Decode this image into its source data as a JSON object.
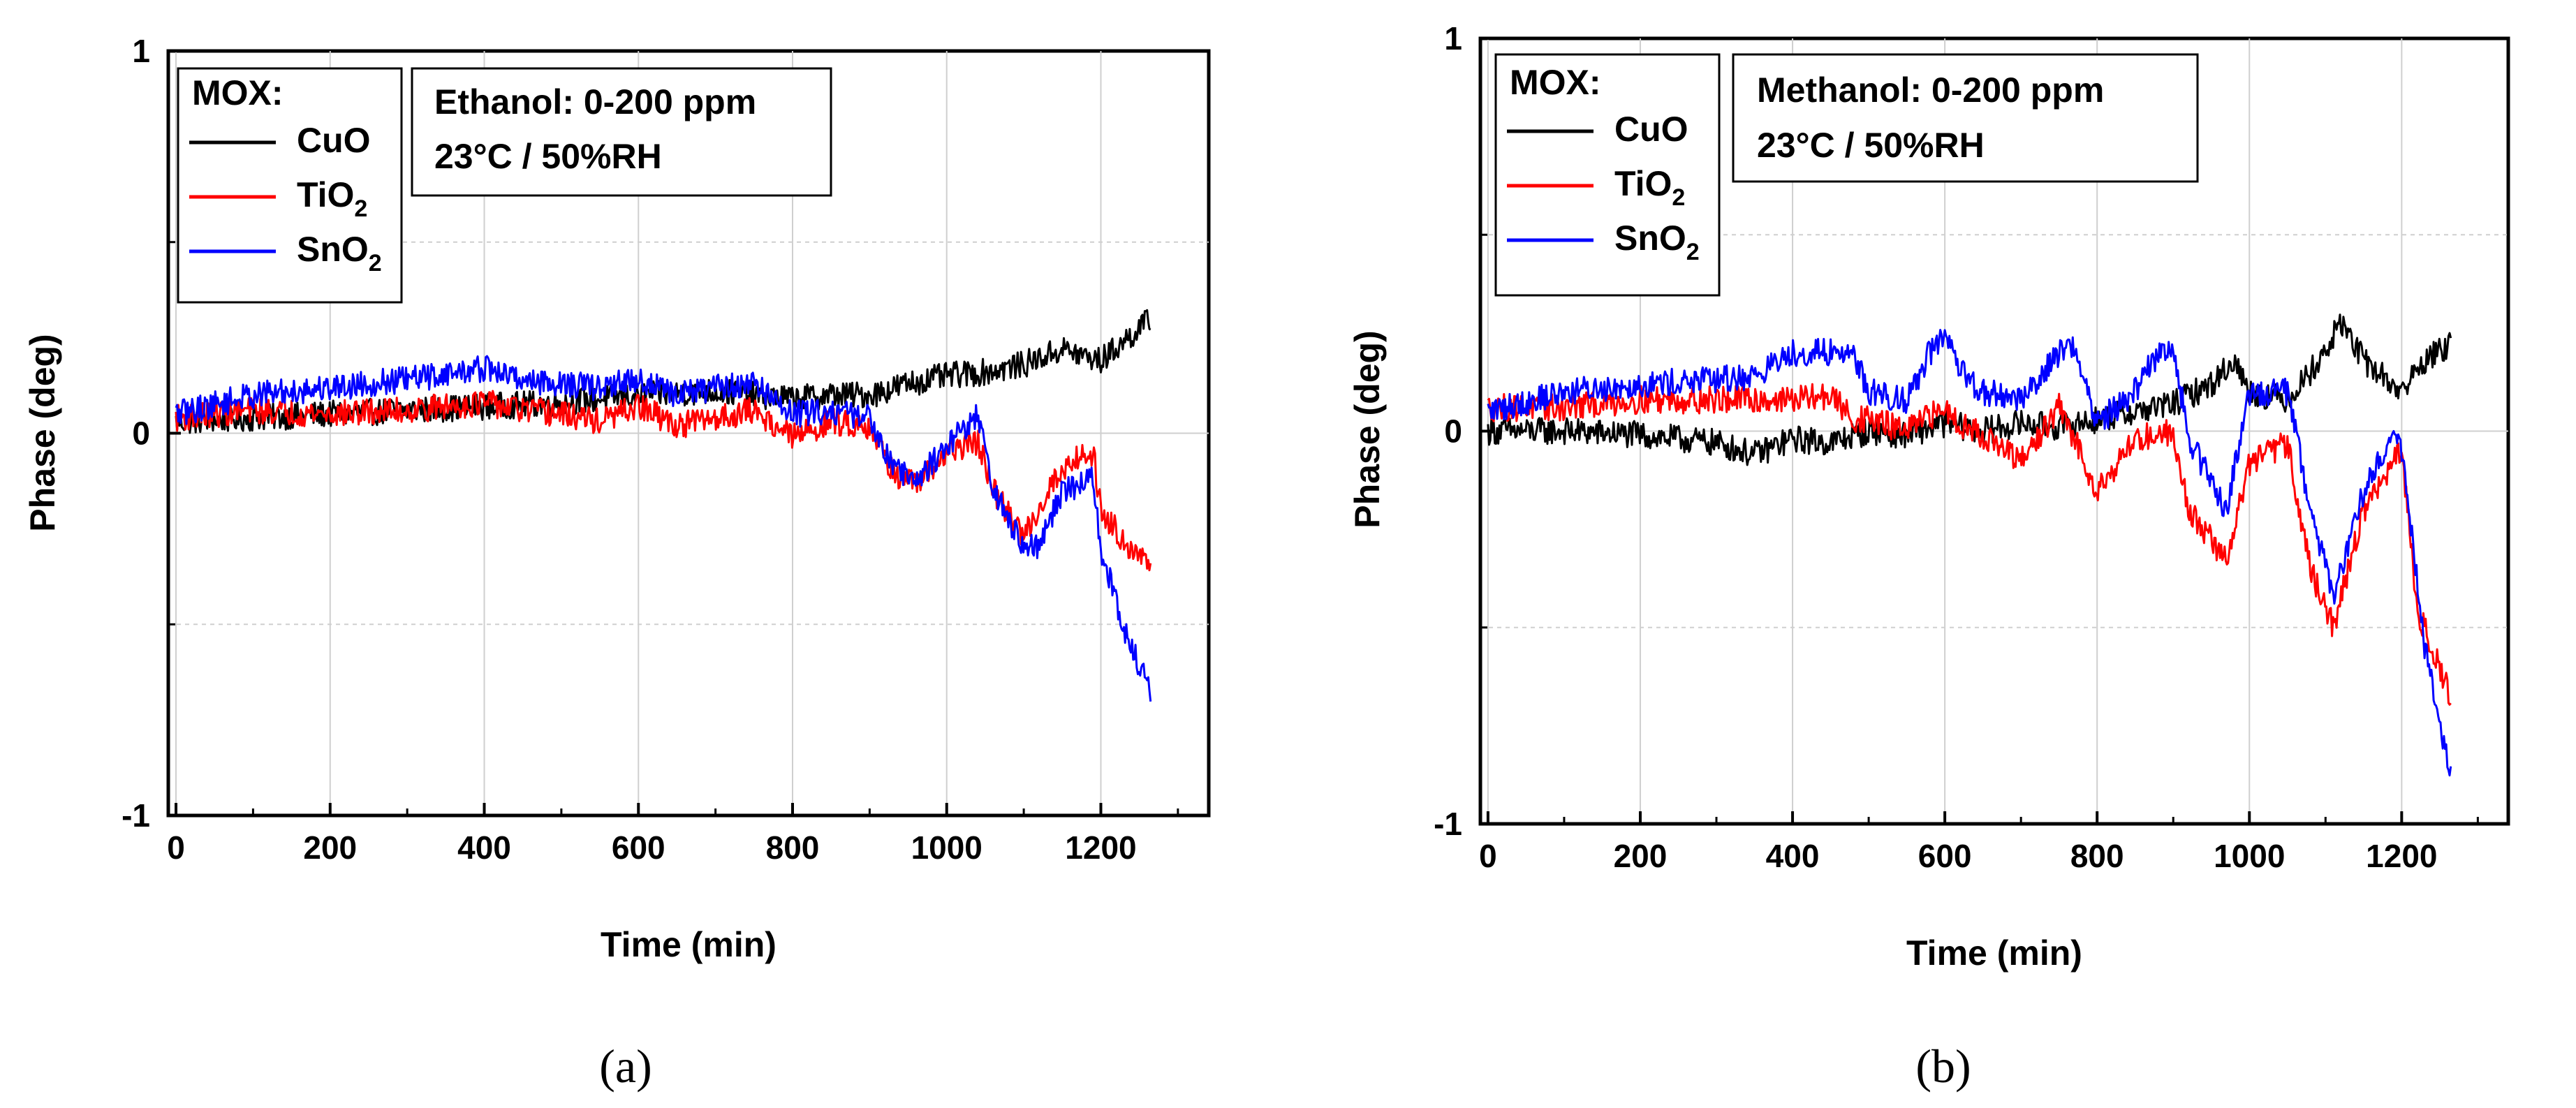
{
  "chart_data": [
    {
      "type": "line",
      "panel_label": "(a)",
      "xlabel": "Time (min)",
      "ylabel": "Phase (deg)",
      "xlim": [
        -10,
        1340
      ],
      "ylim": [
        -1,
        1
      ],
      "xticks": [
        0,
        200,
        400,
        600,
        800,
        1000,
        1200
      ],
      "yticks": [
        -1,
        0,
        1
      ],
      "ytick_labels": [
        "-1",
        "0",
        "1"
      ],
      "grid": true,
      "legend_title": "MOX:",
      "legend_entries": [
        {
          "main": "CuO",
          "sub": ""
        },
        {
          "main": "TiO",
          "sub": "2"
        },
        {
          "main": "SnO",
          "sub": "2"
        }
      ],
      "info_box": [
        "Ethanol: 0-200 ppm",
        "23°C / 50%RH"
      ],
      "series": [
        {
          "name": "CuO",
          "color": "#000000",
          "x": [
            0,
            100,
            200,
            300,
            400,
            500,
            600,
            700,
            800,
            850,
            900,
            950,
            1000,
            1050,
            1100,
            1150,
            1180,
            1200,
            1230,
            1265
          ],
          "y": [
            0.03,
            0.04,
            0.05,
            0.06,
            0.07,
            0.08,
            0.1,
            0.11,
            0.09,
            0.1,
            0.1,
            0.13,
            0.15,
            0.16,
            0.18,
            0.22,
            0.2,
            0.19,
            0.24,
            0.3
          ]
        },
        {
          "name": "TiO2",
          "color": "#ff0000",
          "x": [
            0,
            100,
            200,
            300,
            400,
            450,
            500,
            550,
            600,
            650,
            700,
            750,
            800,
            850,
            900,
            930,
            960,
            1000,
            1040,
            1060,
            1100,
            1140,
            1170,
            1190,
            1200,
            1230,
            1265
          ],
          "y": [
            0.04,
            0.06,
            0.05,
            0.06,
            0.08,
            0.06,
            0.05,
            0.03,
            0.07,
            0.02,
            0.04,
            0.06,
            -0.01,
            0.03,
            0.02,
            -0.1,
            -0.14,
            -0.05,
            -0.02,
            -0.15,
            -0.27,
            -0.12,
            -0.06,
            -0.05,
            -0.2,
            -0.28,
            -0.35
          ]
        },
        {
          "name": "SnO2",
          "color": "#0000ff",
          "x": [
            0,
            100,
            200,
            300,
            400,
            450,
            500,
            550,
            600,
            650,
            700,
            750,
            800,
            850,
            900,
            930,
            960,
            1000,
            1040,
            1060,
            1100,
            1120,
            1150,
            1190,
            1200,
            1230,
            1265
          ],
          "y": [
            0.05,
            0.1,
            0.12,
            0.14,
            0.17,
            0.14,
            0.13,
            0.12,
            0.14,
            0.1,
            0.12,
            0.13,
            0.05,
            0.06,
            0.04,
            -0.08,
            -0.13,
            -0.03,
            0.05,
            -0.15,
            -0.3,
            -0.3,
            -0.15,
            -0.12,
            -0.3,
            -0.52,
            -0.68
          ]
        }
      ]
    },
    {
      "type": "line",
      "panel_label": "(b)",
      "xlabel": "Time (min)",
      "ylabel": "Phase (deg)",
      "xlim": [
        -10,
        1340
      ],
      "ylim": [
        -1,
        1
      ],
      "xticks": [
        0,
        200,
        400,
        600,
        800,
        1000,
        1200
      ],
      "yticks": [
        -1,
        0,
        1
      ],
      "ytick_labels": [
        "-1",
        "0",
        "1"
      ],
      "grid": true,
      "legend_title": "MOX:",
      "legend_entries": [
        {
          "main": "CuO",
          "sub": ""
        },
        {
          "main": "TiO",
          "sub": "2"
        },
        {
          "main": "SnO",
          "sub": "2"
        }
      ],
      "info_box": [
        "Methanol: 0-200 ppm",
        "23°C / 50%RH"
      ],
      "series": [
        {
          "name": "CuO",
          "color": "#000000",
          "x": [
            0,
            100,
            200,
            300,
            350,
            400,
            450,
            500,
            550,
            600,
            650,
            700,
            750,
            800,
            850,
            900,
            950,
            980,
            1000,
            1050,
            1100,
            1120,
            1150,
            1200,
            1230,
            1265
          ],
          "y": [
            0.0,
            0.0,
            -0.01,
            -0.03,
            -0.06,
            -0.02,
            -0.03,
            0.0,
            -0.01,
            0.02,
            0.0,
            0.02,
            0.01,
            0.03,
            0.05,
            0.07,
            0.12,
            0.18,
            0.1,
            0.08,
            0.2,
            0.28,
            0.18,
            0.1,
            0.18,
            0.22
          ]
        },
        {
          "name": "TiO2",
          "color": "#ff0000",
          "x": [
            0,
            100,
            200,
            300,
            400,
            450,
            480,
            500,
            550,
            600,
            620,
            650,
            700,
            750,
            770,
            800,
            850,
            900,
            920,
            970,
            1000,
            1050,
            1080,
            1110,
            1150,
            1200,
            1220,
            1265
          ],
          "y": [
            0.06,
            0.06,
            0.08,
            0.08,
            0.08,
            0.09,
            0.03,
            0.03,
            0.0,
            0.06,
            0.02,
            -0.01,
            -0.08,
            0.06,
            -0.02,
            -0.15,
            -0.02,
            0.0,
            -0.2,
            -0.33,
            -0.08,
            -0.03,
            -0.35,
            -0.5,
            -0.2,
            -0.05,
            -0.45,
            -0.68
          ]
        },
        {
          "name": "SnO2",
          "color": "#0000ff",
          "x": [
            0,
            100,
            200,
            300,
            350,
            400,
            450,
            480,
            500,
            550,
            580,
            600,
            620,
            650,
            700,
            750,
            770,
            800,
            850,
            880,
            900,
            920,
            970,
            1000,
            1050,
            1080,
            1110,
            1150,
            1190,
            1200,
            1230,
            1265
          ],
          "y": [
            0.05,
            0.1,
            0.12,
            0.13,
            0.14,
            0.2,
            0.2,
            0.2,
            0.1,
            0.08,
            0.2,
            0.24,
            0.15,
            0.1,
            0.08,
            0.2,
            0.22,
            0.02,
            0.1,
            0.2,
            0.22,
            -0.02,
            -0.2,
            0.1,
            0.1,
            -0.2,
            -0.42,
            -0.15,
            0.0,
            -0.05,
            -0.55,
            -0.88
          ]
        }
      ]
    }
  ]
}
